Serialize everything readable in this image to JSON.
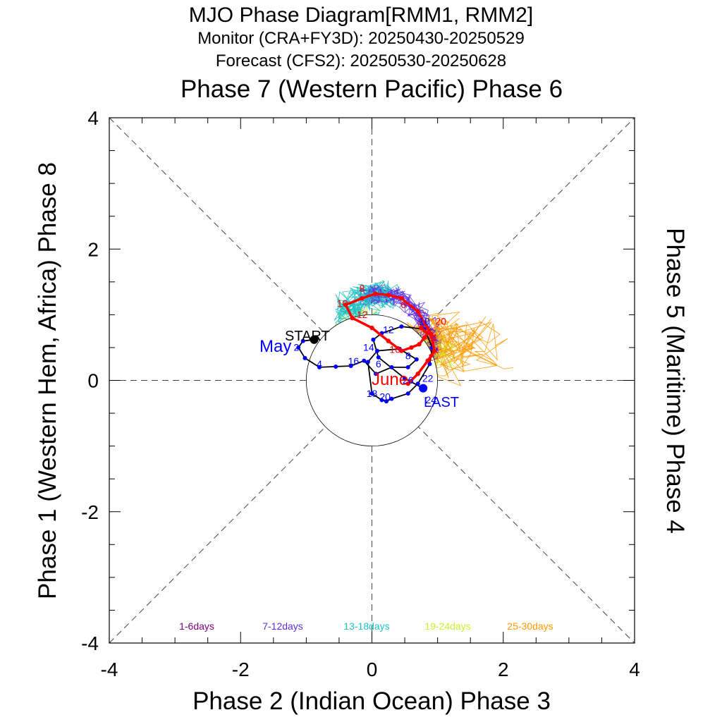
{
  "title": "MJO Phase Diagram[RMM1, RMM2]",
  "subtitle_monitor": "Monitor (CRA+FY3D): 20250430-20250529",
  "subtitle_forecast": "Forecast (CFS2): 20250530-20250628",
  "labels": {
    "top": "Phase 7 (Western Pacific) Phase 6",
    "bottom": "Phase 2 (Indian Ocean) Phase 3",
    "left": "Phase 1 (Western Hem, Africa) Phase 8",
    "right": "Phase 5 (Maritime) Phase 4",
    "start": "START",
    "last": "LAST",
    "month_may": "May",
    "month_june": "June"
  },
  "legend": [
    {
      "label": "1-6days",
      "color": "#800080"
    },
    {
      "label": "7-12days",
      "color": "#5a2ee6"
    },
    {
      "label": "13-18days",
      "color": "#20c0c0"
    },
    {
      "label": "19-24days",
      "color": "#c8f030"
    },
    {
      "label": "25-30days",
      "color": "#ff9900"
    }
  ],
  "chart_data": {
    "type": "line",
    "xlabel": "Phase 2 (Indian Ocean) Phase 3",
    "ylabel": "Phase 1 (Western Hem, Africa) Phase 8",
    "xlim": [
      -4,
      4
    ],
    "ylim": [
      -4,
      4
    ],
    "xticks": [
      -4,
      -2,
      0,
      2,
      4
    ],
    "yticks": [
      -4,
      -2,
      0,
      2,
      4
    ],
    "xtick_labels": [
      "-4",
      "-2",
      "0",
      "2",
      "4"
    ],
    "ytick_labels": [
      "-4",
      "-2",
      "0",
      "2",
      "4"
    ],
    "unit_circle_radius": 1,
    "colors": {
      "monitor_line": "#000000",
      "monitor_marker": "#0000ff",
      "forecast": "#ff0000"
    },
    "series": [
      {
        "name": "Monitor (CRA+FY3D)",
        "x": [
          -0.88,
          -1.05,
          -1.12,
          -1.02,
          -0.8,
          -0.55,
          -0.32,
          -0.12,
          0.06,
          0.3,
          0.55,
          0.68,
          0.42,
          0.08,
          -0.06,
          0.0,
          0.15,
          0.22,
          0.3,
          0.55,
          0.7,
          0.88,
          0.92,
          0.8,
          0.45,
          0.15,
          0.02,
          0.1,
          0.5,
          0.78
        ],
        "y": [
          0.62,
          0.6,
          0.5,
          0.34,
          0.2,
          0.21,
          0.22,
          0.3,
          0.1,
          0.2,
          0.2,
          0.32,
          0.48,
          0.45,
          0.28,
          -0.2,
          -0.3,
          -0.32,
          -0.28,
          -0.2,
          -0.05,
          0.25,
          0.5,
          0.78,
          0.82,
          0.72,
          0.62,
          0.35,
          0.03,
          -0.12
        ],
        "point_labels": [
          {
            "x": -1.15,
            "y": 0.45,
            "text": "2"
          },
          {
            "x": -0.8,
            "y": 0.2,
            "text": "4"
          },
          {
            "x": 0.1,
            "y": 0.2,
            "text": "6"
          },
          {
            "x": 0.55,
            "y": 0.32,
            "text": "8"
          },
          {
            "x": 0.8,
            "y": 0.85,
            "text": "10"
          },
          {
            "x": 0.25,
            "y": 0.72,
            "text": "12"
          },
          {
            "x": -0.05,
            "y": 0.45,
            "text": "14"
          },
          {
            "x": -0.28,
            "y": 0.24,
            "text": "16"
          },
          {
            "x": 0.0,
            "y": -0.25,
            "text": "18"
          },
          {
            "x": 0.2,
            "y": -0.3,
            "text": "20"
          },
          {
            "x": 0.85,
            "y": -0.02,
            "text": "22"
          },
          {
            "x": 0.9,
            "y": -0.35,
            "text": "24"
          },
          {
            "x": 0.55,
            "y": -0.05,
            "text": "26"
          }
        ]
      },
      {
        "name": "Forecast (CFS2)",
        "x": [
          0.55,
          0.7,
          0.85,
          0.95,
          0.9,
          0.7,
          0.45,
          0.25,
          0.05,
          -0.15,
          -0.4,
          -0.3,
          0.0,
          0.25,
          0.45,
          0.6,
          0.72,
          0.8,
          0.85,
          0.75
        ],
        "y": [
          -0.05,
          0.1,
          0.3,
          0.45,
          0.7,
          1.05,
          1.25,
          1.3,
          1.32,
          1.25,
          1.15,
          0.95,
          0.8,
          0.6,
          0.45,
          0.5,
          0.55,
          0.65,
          0.72,
          0.8
        ],
        "point_labels": [
          {
            "x": 0.9,
            "y": 0.3,
            "text": "2"
          },
          {
            "x": 0.95,
            "y": 0.6,
            "text": "4"
          },
          {
            "x": 0.48,
            "y": 1.1,
            "text": "6"
          },
          {
            "x": -0.15,
            "y": 1.35,
            "text": "8"
          },
          {
            "x": -0.45,
            "y": 1.12,
            "text": "10"
          },
          {
            "x": -0.15,
            "y": 0.95,
            "text": "12"
          },
          {
            "x": 0.35,
            "y": 0.42,
            "text": "16"
          },
          {
            "x": 1.05,
            "y": 0.85,
            "text": "20"
          }
        ]
      }
    ],
    "ensemble_legend": [
      "1-6days",
      "7-12days",
      "13-18days",
      "19-24days",
      "25-30days"
    ]
  }
}
